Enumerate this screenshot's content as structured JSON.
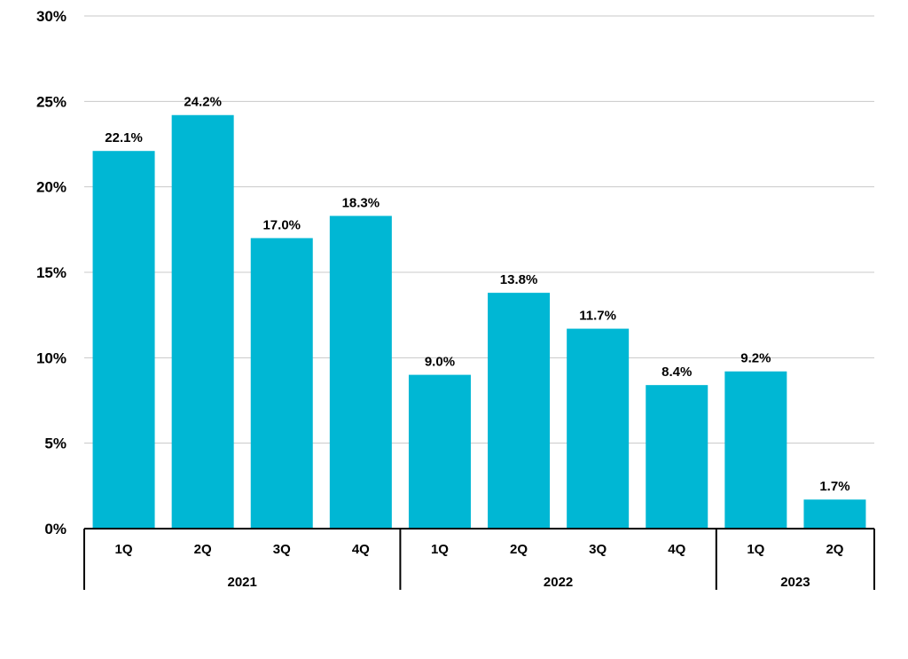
{
  "chart_data": {
    "type": "bar",
    "categories": [
      "1Q",
      "2Q",
      "3Q",
      "4Q",
      "1Q",
      "2Q",
      "3Q",
      "4Q",
      "1Q",
      "2Q"
    ],
    "groups": [
      {
        "label": "2021",
        "count": 4
      },
      {
        "label": "2022",
        "count": 4
      },
      {
        "label": "2023",
        "count": 2
      }
    ],
    "values": [
      22.1,
      24.2,
      17.0,
      18.3,
      9.0,
      13.8,
      11.7,
      8.4,
      9.2,
      1.7
    ],
    "data_labels": [
      "22.1%",
      "24.2%",
      "17.0%",
      "18.3%",
      "9.0%",
      "13.8%",
      "11.7%",
      "8.4%",
      "9.2%",
      "1.7%"
    ],
    "yticks": [
      0,
      5,
      10,
      15,
      20,
      25,
      30
    ],
    "ytick_labels": [
      "0%",
      "5%",
      "10%",
      "15%",
      "20%",
      "25%",
      "30%"
    ],
    "ylim": [
      0,
      30
    ],
    "grid": true,
    "bar_color": "#00B7D4",
    "title": "",
    "xlabel": "",
    "ylabel": ""
  }
}
